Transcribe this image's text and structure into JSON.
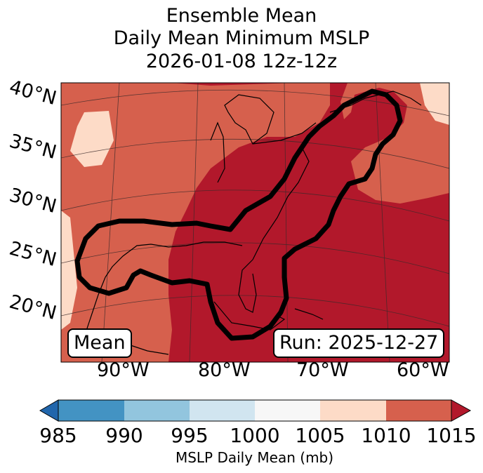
{
  "title": {
    "line1": "Ensemble Mean",
    "line2": "Daily Mean Minimum MSLP",
    "line3": "2026-01-08 12z-12z"
  },
  "map": {
    "lat_labels": [
      "40°N",
      "35°N",
      "30°N",
      "25°N",
      "20°N"
    ],
    "lon_labels": [
      "90°W",
      "80°W",
      "70°W",
      "60°W"
    ],
    "box_left": "Mean",
    "box_right": "Run: 2025-12-27"
  },
  "colorbar": {
    "ticks": [
      "985",
      "990",
      "995",
      "1000",
      "1005",
      "1010",
      "1015"
    ],
    "label": "MSLP Daily Mean (mb)",
    "colors": {
      "under": "#2166ac",
      "c985_990": "#4393c3",
      "c990_995": "#92c5de",
      "c995_1000": "#d1e5f0",
      "c1000_1005": "#f7f7f7",
      "c1005_1010": "#fddbc7",
      "c1010_1015": "#d6604d",
      "over": "#b2182b"
    }
  }
}
